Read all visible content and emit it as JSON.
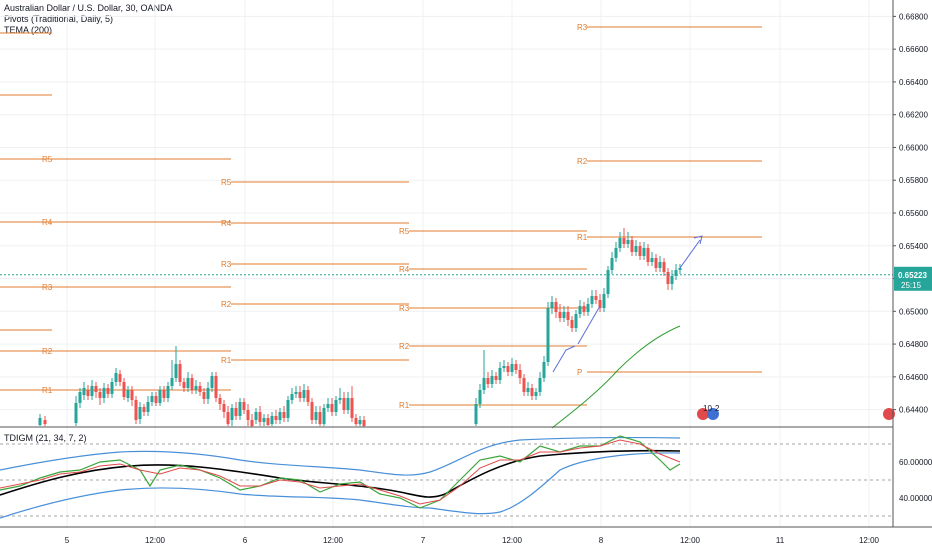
{
  "legend": {
    "title": "Australian Dollar / U.S. Dollar, 30, OANDA",
    "pivots": "Pivots (Traditional, Daily, 5)",
    "tema": "TEMA (200)",
    "indicator": "TDIGM (21, 34, 7, 2)"
  },
  "price_label": {
    "value": "0.65223",
    "countdown": "25:15"
  },
  "colors": {
    "up": "#26a69a",
    "down": "#ef5350",
    "pivot": "#e07b2c",
    "tema": "#2e9e2e",
    "arrow": "#5b6ed6",
    "band": "#4a90d9",
    "rsi": "#3aa53a",
    "signal": "#e04a4a",
    "mid": "#000000",
    "grid": "#eef0f3"
  },
  "event_badge": "10",
  "event_badge2": "2",
  "chart_data": [
    {
      "type": "candlestick",
      "title": "Australian Dollar / U.S. Dollar, 30, OANDA",
      "ylim": [
        0.643,
        0.669
      ],
      "y_ticks": [
        "0.66800",
        "0.66600",
        "0.66400",
        "0.66200",
        "0.66000",
        "0.65800",
        "0.65600",
        "0.65400",
        "0.65200",
        "0.65000",
        "0.64800",
        "0.64600",
        "0.64400"
      ],
      "x_ticks": [
        "5",
        "12:00",
        "6",
        "12:00",
        "7",
        "12:00",
        "8",
        "12:00",
        "11",
        "12:00"
      ],
      "last_price": 0.65223,
      "pivot_labels": [
        "R5",
        "R4",
        "R3",
        "R2",
        "R1",
        "P"
      ],
      "tema_label": "TEMA (200)"
    },
    {
      "type": "line",
      "title": "TDIGM (21, 34, 7, 2)",
      "y_ticks": [
        "60.00000",
        "40.00000"
      ]
    }
  ]
}
